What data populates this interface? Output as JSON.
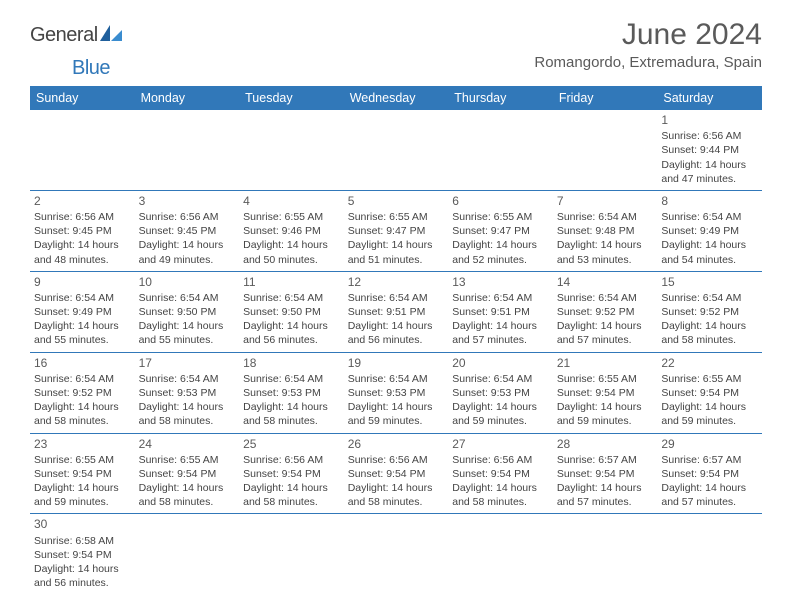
{
  "logo": {
    "text1": "General",
    "text2": "Blue"
  },
  "title": "June 2024",
  "location": "Romangordo, Extremadura, Spain",
  "colors": {
    "header_bg": "#3178b9",
    "header_text": "#ffffff",
    "body_text": "#444444",
    "title_text": "#5a5a5a",
    "border": "#3178b9"
  },
  "fonts": {
    "title_size_pt": 30,
    "location_size_pt": 15,
    "dayheader_size_pt": 12.5,
    "daynum_size_pt": 12,
    "cell_size_pt": 10.5
  },
  "day_headers": [
    "Sunday",
    "Monday",
    "Tuesday",
    "Wednesday",
    "Thursday",
    "Friday",
    "Saturday"
  ],
  "weeks": [
    [
      null,
      null,
      null,
      null,
      null,
      null,
      {
        "n": "1",
        "sr": "Sunrise: 6:56 AM",
        "ss": "Sunset: 9:44 PM",
        "dl": "Daylight: 14 hours and 47 minutes."
      }
    ],
    [
      {
        "n": "2",
        "sr": "Sunrise: 6:56 AM",
        "ss": "Sunset: 9:45 PM",
        "dl": "Daylight: 14 hours and 48 minutes."
      },
      {
        "n": "3",
        "sr": "Sunrise: 6:56 AM",
        "ss": "Sunset: 9:45 PM",
        "dl": "Daylight: 14 hours and 49 minutes."
      },
      {
        "n": "4",
        "sr": "Sunrise: 6:55 AM",
        "ss": "Sunset: 9:46 PM",
        "dl": "Daylight: 14 hours and 50 minutes."
      },
      {
        "n": "5",
        "sr": "Sunrise: 6:55 AM",
        "ss": "Sunset: 9:47 PM",
        "dl": "Daylight: 14 hours and 51 minutes."
      },
      {
        "n": "6",
        "sr": "Sunrise: 6:55 AM",
        "ss": "Sunset: 9:47 PM",
        "dl": "Daylight: 14 hours and 52 minutes."
      },
      {
        "n": "7",
        "sr": "Sunrise: 6:54 AM",
        "ss": "Sunset: 9:48 PM",
        "dl": "Daylight: 14 hours and 53 minutes."
      },
      {
        "n": "8",
        "sr": "Sunrise: 6:54 AM",
        "ss": "Sunset: 9:49 PM",
        "dl": "Daylight: 14 hours and 54 minutes."
      }
    ],
    [
      {
        "n": "9",
        "sr": "Sunrise: 6:54 AM",
        "ss": "Sunset: 9:49 PM",
        "dl": "Daylight: 14 hours and 55 minutes."
      },
      {
        "n": "10",
        "sr": "Sunrise: 6:54 AM",
        "ss": "Sunset: 9:50 PM",
        "dl": "Daylight: 14 hours and 55 minutes."
      },
      {
        "n": "11",
        "sr": "Sunrise: 6:54 AM",
        "ss": "Sunset: 9:50 PM",
        "dl": "Daylight: 14 hours and 56 minutes."
      },
      {
        "n": "12",
        "sr": "Sunrise: 6:54 AM",
        "ss": "Sunset: 9:51 PM",
        "dl": "Daylight: 14 hours and 56 minutes."
      },
      {
        "n": "13",
        "sr": "Sunrise: 6:54 AM",
        "ss": "Sunset: 9:51 PM",
        "dl": "Daylight: 14 hours and 57 minutes."
      },
      {
        "n": "14",
        "sr": "Sunrise: 6:54 AM",
        "ss": "Sunset: 9:52 PM",
        "dl": "Daylight: 14 hours and 57 minutes."
      },
      {
        "n": "15",
        "sr": "Sunrise: 6:54 AM",
        "ss": "Sunset: 9:52 PM",
        "dl": "Daylight: 14 hours and 58 minutes."
      }
    ],
    [
      {
        "n": "16",
        "sr": "Sunrise: 6:54 AM",
        "ss": "Sunset: 9:52 PM",
        "dl": "Daylight: 14 hours and 58 minutes."
      },
      {
        "n": "17",
        "sr": "Sunrise: 6:54 AM",
        "ss": "Sunset: 9:53 PM",
        "dl": "Daylight: 14 hours and 58 minutes."
      },
      {
        "n": "18",
        "sr": "Sunrise: 6:54 AM",
        "ss": "Sunset: 9:53 PM",
        "dl": "Daylight: 14 hours and 58 minutes."
      },
      {
        "n": "19",
        "sr": "Sunrise: 6:54 AM",
        "ss": "Sunset: 9:53 PM",
        "dl": "Daylight: 14 hours and 59 minutes."
      },
      {
        "n": "20",
        "sr": "Sunrise: 6:54 AM",
        "ss": "Sunset: 9:53 PM",
        "dl": "Daylight: 14 hours and 59 minutes."
      },
      {
        "n": "21",
        "sr": "Sunrise: 6:55 AM",
        "ss": "Sunset: 9:54 PM",
        "dl": "Daylight: 14 hours and 59 minutes."
      },
      {
        "n": "22",
        "sr": "Sunrise: 6:55 AM",
        "ss": "Sunset: 9:54 PM",
        "dl": "Daylight: 14 hours and 59 minutes."
      }
    ],
    [
      {
        "n": "23",
        "sr": "Sunrise: 6:55 AM",
        "ss": "Sunset: 9:54 PM",
        "dl": "Daylight: 14 hours and 59 minutes."
      },
      {
        "n": "24",
        "sr": "Sunrise: 6:55 AM",
        "ss": "Sunset: 9:54 PM",
        "dl": "Daylight: 14 hours and 58 minutes."
      },
      {
        "n": "25",
        "sr": "Sunrise: 6:56 AM",
        "ss": "Sunset: 9:54 PM",
        "dl": "Daylight: 14 hours and 58 minutes."
      },
      {
        "n": "26",
        "sr": "Sunrise: 6:56 AM",
        "ss": "Sunset: 9:54 PM",
        "dl": "Daylight: 14 hours and 58 minutes."
      },
      {
        "n": "27",
        "sr": "Sunrise: 6:56 AM",
        "ss": "Sunset: 9:54 PM",
        "dl": "Daylight: 14 hours and 58 minutes."
      },
      {
        "n": "28",
        "sr": "Sunrise: 6:57 AM",
        "ss": "Sunset: 9:54 PM",
        "dl": "Daylight: 14 hours and 57 minutes."
      },
      {
        "n": "29",
        "sr": "Sunrise: 6:57 AM",
        "ss": "Sunset: 9:54 PM",
        "dl": "Daylight: 14 hours and 57 minutes."
      }
    ],
    [
      {
        "n": "30",
        "sr": "Sunrise: 6:58 AM",
        "ss": "Sunset: 9:54 PM",
        "dl": "Daylight: 14 hours and 56 minutes."
      },
      null,
      null,
      null,
      null,
      null,
      null
    ]
  ]
}
